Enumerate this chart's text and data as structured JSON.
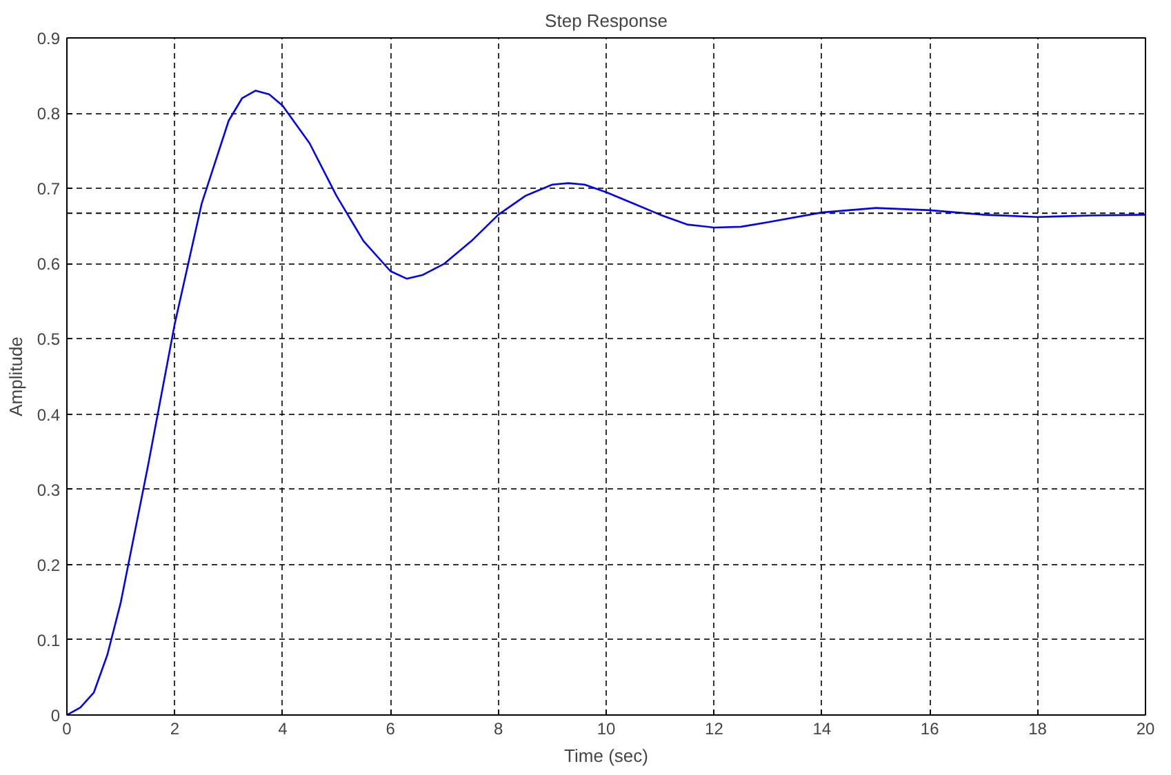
{
  "chart_data": {
    "type": "line",
    "title": "Step Response",
    "xlabel": "Time (sec)",
    "ylabel": "Amplitude",
    "xlim": [
      0,
      20
    ],
    "ylim": [
      0,
      0.9
    ],
    "xticks": [
      0,
      2,
      4,
      6,
      8,
      10,
      12,
      14,
      16,
      18,
      20
    ],
    "yticks": [
      0,
      0.1,
      0.2,
      0.3,
      0.4,
      0.5,
      0.6,
      0.7,
      0.8,
      0.9
    ],
    "grid": true,
    "line_style": "solid",
    "ref_lines": [
      {
        "axis": "y",
        "value": 0.667,
        "color": "#000000",
        "line_style": "dashed"
      }
    ],
    "series": [
      {
        "color": "#0000ff",
        "x": [
          0,
          0.25,
          0.5,
          0.75,
          1,
          1.5,
          2,
          2.5,
          3,
          3.25,
          3.5,
          3.75,
          4,
          4.5,
          5,
          5.5,
          6,
          6.3,
          6.6,
          7,
          7.5,
          8,
          8.5,
          9,
          9.3,
          9.6,
          10,
          10.5,
          11,
          11.5,
          12,
          12.5,
          13,
          14,
          15,
          16,
          17,
          18,
          19,
          20
        ],
        "values": [
          0,
          0.01,
          0.03,
          0.08,
          0.15,
          0.33,
          0.52,
          0.68,
          0.79,
          0.82,
          0.83,
          0.825,
          0.81,
          0.76,
          0.69,
          0.63,
          0.59,
          0.58,
          0.585,
          0.6,
          0.63,
          0.665,
          0.69,
          0.705,
          0.707,
          0.705,
          0.695,
          0.68,
          0.665,
          0.652,
          0.648,
          0.649,
          0.655,
          0.668,
          0.674,
          0.671,
          0.665,
          0.662,
          0.664,
          0.665
        ]
      }
    ]
  }
}
